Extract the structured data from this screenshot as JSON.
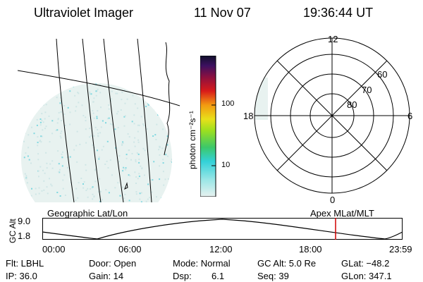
{
  "header": {
    "instrument": "Ultraviolet Imager",
    "date": "11 Nov 07",
    "time": "19:36:44 UT"
  },
  "colorbar": {
    "unit_label": "photon cm⁻²s⁻¹",
    "tick_100": "100",
    "tick_10": "10"
  },
  "polar": {
    "mlt_top": "12",
    "mlt_right": "6",
    "mlt_bottom": "0",
    "mlt_left": "18",
    "lat_60": "60",
    "lat_70": "70",
    "lat_80": "80"
  },
  "labels": {
    "geo_grid": "Geographic Lat/Lon",
    "apex_grid": "Apex MLat/MLT"
  },
  "altitude_panel": {
    "ylabel": "GC Alt",
    "ymax": "9.0",
    "ymin": "1.8",
    "xticks": [
      "00:00",
      "06:00",
      "12:00",
      "18:00",
      "23:59"
    ],
    "marker_color": "#d00000"
  },
  "info": {
    "flt": "Flt: LBHL",
    "ip": "IP: 36.0",
    "door": "Door: Open",
    "gain": "Gain: 14",
    "mode": "Mode: Normal",
    "dsp_label": "Dsp:",
    "dsp_value": "6.1",
    "gcalt": "GC Alt: 5.0 Re",
    "seq": "Seq: 39",
    "glat": "GLat: −48.2",
    "glon": "GLon: 347.1"
  },
  "colors": {
    "image_tint": "#cfe6e6",
    "image_speck": "#7fd8e0"
  }
}
